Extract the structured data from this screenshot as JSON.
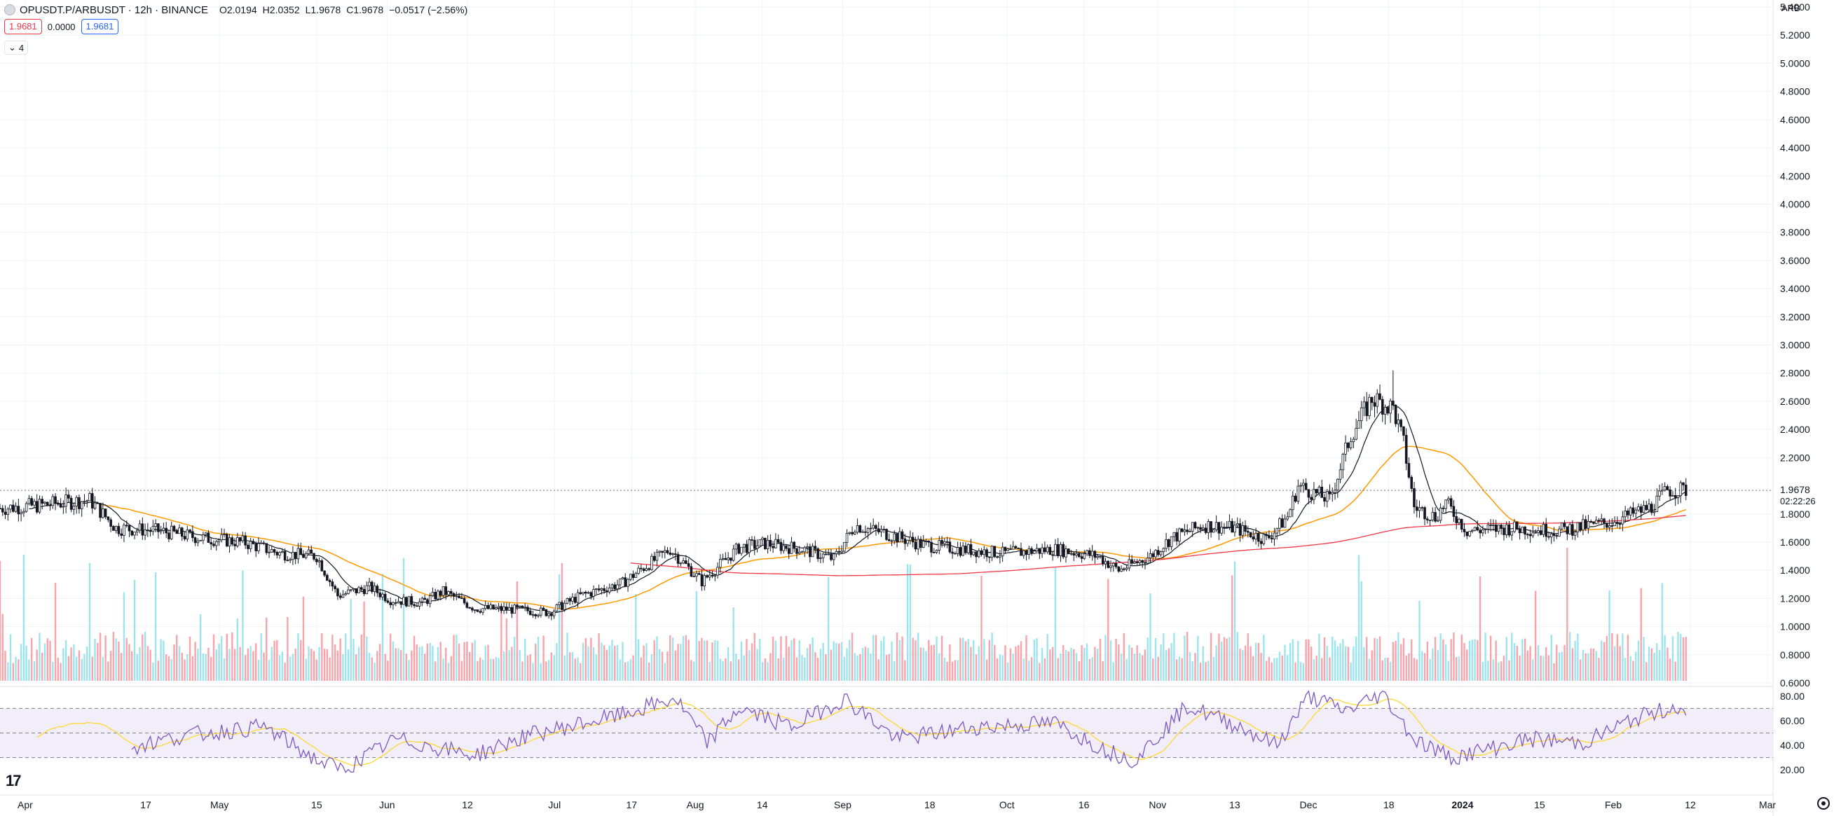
{
  "header": {
    "symbol": "OPUSDT.P/ARBUSDT · 12h · BINANCE",
    "open_label": "O",
    "open": "2.0194",
    "high_label": "H",
    "high": "2.0352",
    "low_label": "L",
    "low": "1.9678",
    "close_label": "C",
    "close": "1.9678",
    "change": "−0.0517 (−2.56%)"
  },
  "indicator_row": {
    "sell": "1.9681",
    "spread": "0.0000",
    "buy": "1.9681"
  },
  "collapse_toggle": {
    "count": "4"
  },
  "currency_label": "ARB",
  "last_price": "1.9678",
  "countdown": "02:22:26",
  "colors": {
    "up": "#26c6da",
    "down": "#f23645",
    "ma_fast": "#131722",
    "ma_mid": "#ff9800",
    "ma_slow": "#f23645",
    "rsi": "#7e57c2",
    "rsi_ma": "#fdd835"
  },
  "chart_data": [
    {
      "type": "candlestick",
      "title": "OPUSDT.P/ARBUSDT · 12h · BINANCE",
      "ylim": [
        0.6,
        5.4
      ],
      "y_ticks": [
        "5.4000",
        "5.2000",
        "5.0000",
        "4.8000",
        "4.6000",
        "4.4000",
        "4.2000",
        "4.0000",
        "3.8000",
        "3.6000",
        "3.4000",
        "3.2000",
        "3.0000",
        "2.8000",
        "2.6000",
        "2.4000",
        "2.2000",
        "1.8000",
        "1.6000",
        "1.4000",
        "1.2000",
        "1.0000",
        "0.8000",
        "0.6000"
      ],
      "x_ticks": [
        "Apr",
        "17",
        "May",
        "15",
        "Jun",
        "12",
        "Jul",
        "17",
        "Aug",
        "14",
        "Sep",
        "18",
        "Oct",
        "16",
        "Nov",
        "13",
        "Dec",
        "18",
        "2024",
        "15",
        "Feb",
        "12",
        "Mar"
      ],
      "x_range_days": [
        0,
        336
      ],
      "close_keypoints": [
        {
          "day": 0,
          "close": 1.84
        },
        {
          "day": 7,
          "close": 1.86
        },
        {
          "day": 17,
          "close": 1.9
        },
        {
          "day": 22,
          "close": 1.7
        },
        {
          "day": 30,
          "close": 1.68
        },
        {
          "day": 38,
          "close": 1.63
        },
        {
          "day": 46,
          "close": 1.6
        },
        {
          "day": 53,
          "close": 1.52
        },
        {
          "day": 60,
          "close": 1.5
        },
        {
          "day": 64,
          "close": 1.22
        },
        {
          "day": 70,
          "close": 1.28
        },
        {
          "day": 74,
          "close": 1.19
        },
        {
          "day": 80,
          "close": 1.17
        },
        {
          "day": 84,
          "close": 1.25
        },
        {
          "day": 90,
          "close": 1.13
        },
        {
          "day": 98,
          "close": 1.12
        },
        {
          "day": 104,
          "close": 1.1
        },
        {
          "day": 110,
          "close": 1.22
        },
        {
          "day": 118,
          "close": 1.31
        },
        {
          "day": 122,
          "close": 1.42
        },
        {
          "day": 127,
          "close": 1.55
        },
        {
          "day": 133,
          "close": 1.32
        },
        {
          "day": 140,
          "close": 1.56
        },
        {
          "day": 145,
          "close": 1.59
        },
        {
          "day": 152,
          "close": 1.55
        },
        {
          "day": 158,
          "close": 1.48
        },
        {
          "day": 162,
          "close": 1.72
        },
        {
          "day": 168,
          "close": 1.66
        },
        {
          "day": 175,
          "close": 1.58
        },
        {
          "day": 182,
          "close": 1.55
        },
        {
          "day": 190,
          "close": 1.52
        },
        {
          "day": 200,
          "close": 1.55
        },
        {
          "day": 208,
          "close": 1.5
        },
        {
          "day": 212,
          "close": 1.4
        },
        {
          "day": 218,
          "close": 1.5
        },
        {
          "day": 222,
          "close": 1.63
        },
        {
          "day": 228,
          "close": 1.72
        },
        {
          "day": 234,
          "close": 1.7
        },
        {
          "day": 240,
          "close": 1.62
        },
        {
          "day": 244,
          "close": 1.78
        },
        {
          "day": 246,
          "close": 2.0
        },
        {
          "day": 252,
          "close": 1.9
        },
        {
          "day": 256,
          "close": 2.36
        },
        {
          "day": 260,
          "close": 2.62
        },
        {
          "day": 264,
          "close": 2.55
        },
        {
          "day": 266,
          "close": 2.3
        },
        {
          "day": 268,
          "close": 1.85
        },
        {
          "day": 272,
          "close": 1.78
        },
        {
          "day": 274,
          "close": 1.88
        },
        {
          "day": 278,
          "close": 1.68
        },
        {
          "day": 286,
          "close": 1.7
        },
        {
          "day": 295,
          "close": 1.68
        },
        {
          "day": 305,
          "close": 1.74
        },
        {
          "day": 313,
          "close": 1.85
        },
        {
          "day": 316,
          "close": 1.97
        },
        {
          "day": 320,
          "close": 1.97
        }
      ],
      "series": [
        {
          "name": "MA fast",
          "color": "#131722"
        },
        {
          "name": "MA mid",
          "color": "#ff9800"
        },
        {
          "name": "MA slow",
          "color": "#f23645"
        }
      ]
    },
    {
      "type": "bar",
      "panel": "volume",
      "note_values_shown_as_relative_heights": true
    },
    {
      "type": "line",
      "panel": "RSI",
      "ylim": [
        15,
        85
      ],
      "y_ticks": [
        "80.00",
        "60.00",
        "40.00",
        "20.00"
      ],
      "bands": [
        30,
        50,
        70
      ],
      "rsi_keypoints": [
        {
          "day": 0,
          "value": 42
        },
        {
          "day": 10,
          "value": 57
        },
        {
          "day": 18,
          "value": 60
        },
        {
          "day": 22,
          "value": 36
        },
        {
          "day": 35,
          "value": 48
        },
        {
          "day": 50,
          "value": 55
        },
        {
          "day": 60,
          "value": 28
        },
        {
          "day": 65,
          "value": 20
        },
        {
          "day": 75,
          "value": 45
        },
        {
          "day": 90,
          "value": 32
        },
        {
          "day": 100,
          "value": 48
        },
        {
          "day": 118,
          "value": 65
        },
        {
          "day": 128,
          "value": 78
        },
        {
          "day": 134,
          "value": 42
        },
        {
          "day": 140,
          "value": 70
        },
        {
          "day": 150,
          "value": 55
        },
        {
          "day": 160,
          "value": 78
        },
        {
          "day": 170,
          "value": 45
        },
        {
          "day": 185,
          "value": 55
        },
        {
          "day": 200,
          "value": 58
        },
        {
          "day": 210,
          "value": 35
        },
        {
          "day": 215,
          "value": 28
        },
        {
          "day": 225,
          "value": 72
        },
        {
          "day": 235,
          "value": 55
        },
        {
          "day": 242,
          "value": 40
        },
        {
          "day": 248,
          "value": 80
        },
        {
          "day": 255,
          "value": 68
        },
        {
          "day": 262,
          "value": 82
        },
        {
          "day": 268,
          "value": 45
        },
        {
          "day": 275,
          "value": 30
        },
        {
          "day": 290,
          "value": 45
        },
        {
          "day": 300,
          "value": 42
        },
        {
          "day": 310,
          "value": 62
        },
        {
          "day": 318,
          "value": 72
        },
        {
          "day": 320,
          "value": 55
        }
      ]
    }
  ]
}
